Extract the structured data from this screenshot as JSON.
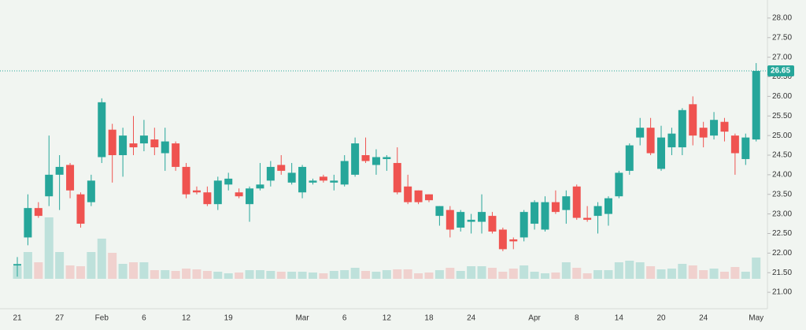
{
  "chart_data": {
    "type": "candlestick",
    "categories": [
      "21",
      null,
      null,
      null,
      "27",
      null,
      null,
      null,
      "Feb",
      null,
      null,
      null,
      "6",
      null,
      null,
      null,
      "12",
      null,
      null,
      null,
      "19",
      null,
      null,
      null,
      null,
      null,
      null,
      "Mar",
      null,
      null,
      null,
      "6",
      null,
      null,
      null,
      "12",
      null,
      null,
      null,
      "18",
      null,
      null,
      null,
      "24",
      null,
      null,
      null,
      null,
      null,
      "Apr",
      null,
      null,
      null,
      "8",
      null,
      null,
      null,
      "14",
      null,
      null,
      null,
      "20",
      null,
      null,
      null,
      "24",
      null,
      null,
      null,
      null,
      "May"
    ],
    "open": [
      21.68,
      22.4,
      23.15,
      23.45,
      24.0,
      24.25,
      23.5,
      23.3,
      24.45,
      25.15,
      24.5,
      24.8,
      24.8,
      24.9,
      24.55,
      24.8,
      24.2,
      23.6,
      23.55,
      23.25,
      23.75,
      23.55,
      23.25,
      23.65,
      23.85,
      24.25,
      23.8,
      23.55,
      23.8,
      23.95,
      23.8,
      23.75,
      24.0,
      24.5,
      24.25,
      24.4,
      24.3,
      23.7,
      23.6,
      23.5,
      22.95,
      23.1,
      22.65,
      22.8,
      22.8,
      22.95,
      22.6,
      22.35,
      22.4,
      22.75,
      22.6,
      23.3,
      23.1,
      23.7,
      22.9,
      22.95,
      23.0,
      23.45,
      24.1,
      24.95,
      25.2,
      24.15,
      24.7,
      24.7,
      25.8,
      25.2,
      25.0,
      25.35,
      25.0,
      24.4,
      24.9
    ],
    "high": [
      21.9,
      23.5,
      23.3,
      25.0,
      24.5,
      24.3,
      23.55,
      24.0,
      25.95,
      25.3,
      25.2,
      25.5,
      25.4,
      25.2,
      25.2,
      24.85,
      24.3,
      23.7,
      23.7,
      23.95,
      24.05,
      23.65,
      23.7,
      24.3,
      24.35,
      24.5,
      24.3,
      24.25,
      23.9,
      24.0,
      24.0,
      24.5,
      24.95,
      24.95,
      24.65,
      24.5,
      24.7,
      24.0,
      23.6,
      23.5,
      23.2,
      23.2,
      23.1,
      23.0,
      23.5,
      23.05,
      22.65,
      22.4,
      23.1,
      23.35,
      23.45,
      23.6,
      23.6,
      23.75,
      23.2,
      23.3,
      23.45,
      24.1,
      24.8,
      25.45,
      25.45,
      25.25,
      25.2,
      25.7,
      26.0,
      25.35,
      25.6,
      25.45,
      25.05,
      25.05,
      26.85
    ],
    "low": [
      21.4,
      22.2,
      22.9,
      23.2,
      23.1,
      23.4,
      22.65,
      23.2,
      24.3,
      23.8,
      23.95,
      24.5,
      24.6,
      24.5,
      24.1,
      24.1,
      23.4,
      23.5,
      23.2,
      23.1,
      23.6,
      23.4,
      22.8,
      23.6,
      23.7,
      24.0,
      23.75,
      23.4,
      23.75,
      23.8,
      23.6,
      23.7,
      23.95,
      24.3,
      24.0,
      24.1,
      23.5,
      23.25,
      23.25,
      23.3,
      22.7,
      22.4,
      22.55,
      22.5,
      22.5,
      22.5,
      22.05,
      22.1,
      22.3,
      22.6,
      22.55,
      23.0,
      22.75,
      22.85,
      22.8,
      22.5,
      22.7,
      23.4,
      24.0,
      24.75,
      24.5,
      24.1,
      24.5,
      24.5,
      24.75,
      24.7,
      24.9,
      24.85,
      24.0,
      24.25,
      24.85
    ],
    "close": [
      21.72,
      23.15,
      22.95,
      24.0,
      24.2,
      23.6,
      22.75,
      23.85,
      25.85,
      24.5,
      25.0,
      24.7,
      25.0,
      24.7,
      24.85,
      24.2,
      23.5,
      23.55,
      23.25,
      23.85,
      23.9,
      23.45,
      23.65,
      23.75,
      24.2,
      24.1,
      24.05,
      24.2,
      23.85,
      23.85,
      23.85,
      24.35,
      24.8,
      24.35,
      24.45,
      24.45,
      23.55,
      23.3,
      23.3,
      23.35,
      23.2,
      22.6,
      23.05,
      22.85,
      23.05,
      22.55,
      22.1,
      22.3,
      23.05,
      23.3,
      23.3,
      23.05,
      23.45,
      22.9,
      22.85,
      23.2,
      23.4,
      24.05,
      24.75,
      25.2,
      24.55,
      24.95,
      25.05,
      25.65,
      25.0,
      24.95,
      25.4,
      25.1,
      24.55,
      24.95,
      26.65
    ],
    "volume": [
      16,
      34,
      21,
      78,
      34,
      17,
      16,
      34,
      51,
      33,
      19,
      21,
      21,
      11,
      11,
      10,
      13,
      12,
      10,
      9,
      7,
      8,
      11,
      11,
      10,
      9,
      9,
      9,
      8,
      7,
      10,
      11,
      14,
      10,
      9,
      11,
      12,
      12,
      7,
      8,
      11,
      14,
      10,
      16,
      16,
      14,
      9,
      13,
      17,
      9,
      7,
      8,
      21,
      14,
      7,
      11,
      11,
      21,
      23,
      21,
      16,
      12,
      13,
      19,
      17,
      11,
      13,
      9,
      15,
      9,
      27
    ],
    "up_color": "#26a69a",
    "down_color": "#ef5350",
    "ylim": [
      20.58,
      28.46
    ],
    "yticks": [
      {
        "value": 21,
        "label": "21.00"
      },
      {
        "value": 21.5,
        "label": "21.50"
      },
      {
        "value": 22,
        "label": "22.00"
      },
      {
        "value": 22.5,
        "label": "22.50"
      },
      {
        "value": 23,
        "label": "23.00"
      },
      {
        "value": 23.5,
        "label": "23.50"
      },
      {
        "value": 24,
        "label": "24.00"
      },
      {
        "value": 24.5,
        "label": "24.50"
      },
      {
        "value": 25,
        "label": "25.00"
      },
      {
        "value": 25.5,
        "label": "25.50"
      },
      {
        "value": 26,
        "label": "26.00"
      },
      {
        "value": 26.5,
        "label": "26.50"
      },
      {
        "value": 27,
        "label": "27.00"
      },
      {
        "value": 27.5,
        "label": "27.50"
      },
      {
        "value": 28,
        "label": "28.00"
      }
    ],
    "last_price": 26.65
  }
}
